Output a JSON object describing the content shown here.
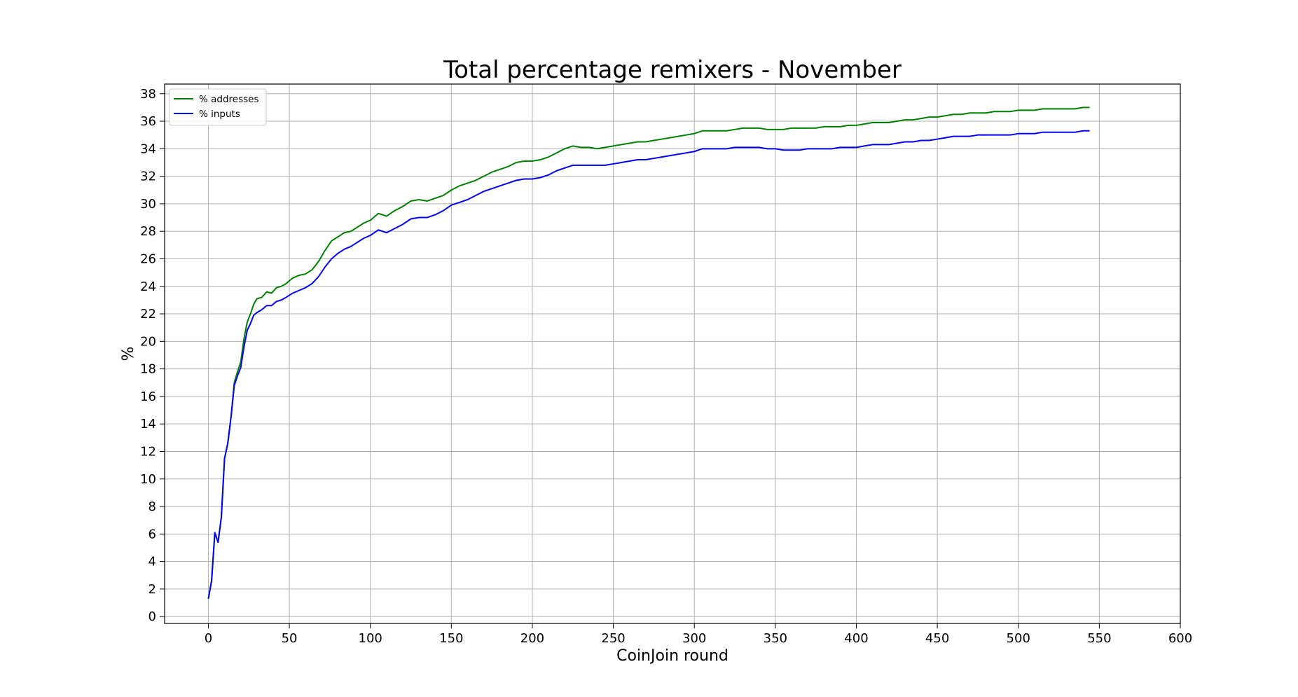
{
  "chart_data": {
    "type": "line",
    "title": "Total percentage remixers - November",
    "xlabel": "CoinJoin round",
    "ylabel": "%",
    "xlim": [
      -27,
      600
    ],
    "ylim": [
      -0.5,
      38.7
    ],
    "xticks": [
      0,
      50,
      100,
      150,
      200,
      250,
      300,
      350,
      400,
      450,
      500,
      550,
      600
    ],
    "yticks": [
      0,
      2,
      4,
      6,
      8,
      10,
      12,
      14,
      16,
      18,
      20,
      22,
      24,
      26,
      28,
      30,
      32,
      34,
      36,
      38
    ],
    "grid": true,
    "legend_position": "top-left",
    "series": [
      {
        "name": "% addresses",
        "color": "#008000",
        "points": [
          [
            0,
            1.3
          ],
          [
            2,
            2.6
          ],
          [
            4,
            6.1
          ],
          [
            6,
            5.4
          ],
          [
            8,
            7.2
          ],
          [
            10,
            11.5
          ],
          [
            12,
            12.6
          ],
          [
            14,
            14.5
          ],
          [
            16,
            17.0
          ],
          [
            18,
            17.8
          ],
          [
            20,
            18.5
          ],
          [
            22,
            20.2
          ],
          [
            24,
            21.4
          ],
          [
            26,
            22.0
          ],
          [
            28,
            22.7
          ],
          [
            30,
            23.1
          ],
          [
            33,
            23.2
          ],
          [
            36,
            23.6
          ],
          [
            39,
            23.5
          ],
          [
            42,
            23.9
          ],
          [
            45,
            24.0
          ],
          [
            48,
            24.2
          ],
          [
            52,
            24.6
          ],
          [
            56,
            24.8
          ],
          [
            60,
            24.9
          ],
          [
            64,
            25.2
          ],
          [
            68,
            25.8
          ],
          [
            72,
            26.6
          ],
          [
            76,
            27.3
          ],
          [
            80,
            27.6
          ],
          [
            84,
            27.9
          ],
          [
            88,
            28.0
          ],
          [
            92,
            28.3
          ],
          [
            96,
            28.6
          ],
          [
            100,
            28.8
          ],
          [
            105,
            29.3
          ],
          [
            110,
            29.1
          ],
          [
            115,
            29.5
          ],
          [
            120,
            29.8
          ],
          [
            125,
            30.2
          ],
          [
            130,
            30.3
          ],
          [
            135,
            30.2
          ],
          [
            140,
            30.4
          ],
          [
            145,
            30.6
          ],
          [
            150,
            31.0
          ],
          [
            155,
            31.3
          ],
          [
            160,
            31.5
          ],
          [
            165,
            31.7
          ],
          [
            170,
            32.0
          ],
          [
            175,
            32.3
          ],
          [
            180,
            32.5
          ],
          [
            185,
            32.7
          ],
          [
            190,
            33.0
          ],
          [
            195,
            33.1
          ],
          [
            200,
            33.1
          ],
          [
            205,
            33.2
          ],
          [
            210,
            33.4
          ],
          [
            215,
            33.7
          ],
          [
            220,
            34.0
          ],
          [
            225,
            34.2
          ],
          [
            230,
            34.1
          ],
          [
            235,
            34.1
          ],
          [
            240,
            34.0
          ],
          [
            245,
            34.1
          ],
          [
            250,
            34.2
          ],
          [
            255,
            34.3
          ],
          [
            260,
            34.4
          ],
          [
            265,
            34.5
          ],
          [
            270,
            34.5
          ],
          [
            275,
            34.6
          ],
          [
            280,
            34.7
          ],
          [
            285,
            34.8
          ],
          [
            290,
            34.9
          ],
          [
            295,
            35.0
          ],
          [
            300,
            35.1
          ],
          [
            305,
            35.3
          ],
          [
            310,
            35.3
          ],
          [
            315,
            35.3
          ],
          [
            320,
            35.3
          ],
          [
            325,
            35.4
          ],
          [
            330,
            35.5
          ],
          [
            335,
            35.5
          ],
          [
            340,
            35.5
          ],
          [
            345,
            35.4
          ],
          [
            350,
            35.4
          ],
          [
            355,
            35.4
          ],
          [
            360,
            35.5
          ],
          [
            365,
            35.5
          ],
          [
            370,
            35.5
          ],
          [
            375,
            35.5
          ],
          [
            380,
            35.6
          ],
          [
            385,
            35.6
          ],
          [
            390,
            35.6
          ],
          [
            395,
            35.7
          ],
          [
            400,
            35.7
          ],
          [
            405,
            35.8
          ],
          [
            410,
            35.9
          ],
          [
            415,
            35.9
          ],
          [
            420,
            35.9
          ],
          [
            425,
            36.0
          ],
          [
            430,
            36.1
          ],
          [
            435,
            36.1
          ],
          [
            440,
            36.2
          ],
          [
            445,
            36.3
          ],
          [
            450,
            36.3
          ],
          [
            455,
            36.4
          ],
          [
            460,
            36.5
          ],
          [
            465,
            36.5
          ],
          [
            470,
            36.6
          ],
          [
            475,
            36.6
          ],
          [
            480,
            36.6
          ],
          [
            485,
            36.7
          ],
          [
            490,
            36.7
          ],
          [
            495,
            36.7
          ],
          [
            500,
            36.8
          ],
          [
            505,
            36.8
          ],
          [
            510,
            36.8
          ],
          [
            515,
            36.9
          ],
          [
            520,
            36.9
          ],
          [
            525,
            36.9
          ],
          [
            530,
            36.9
          ],
          [
            535,
            36.9
          ],
          [
            540,
            37.0
          ],
          [
            544,
            37.0
          ]
        ]
      },
      {
        "name": "% inputs",
        "color": "#0000ff",
        "points": [
          [
            0,
            1.3
          ],
          [
            2,
            2.6
          ],
          [
            4,
            6.1
          ],
          [
            6,
            5.4
          ],
          [
            8,
            7.2
          ],
          [
            10,
            11.5
          ],
          [
            12,
            12.6
          ],
          [
            14,
            14.5
          ],
          [
            16,
            16.8
          ],
          [
            18,
            17.5
          ],
          [
            20,
            18.1
          ],
          [
            22,
            19.6
          ],
          [
            24,
            20.8
          ],
          [
            26,
            21.3
          ],
          [
            28,
            21.9
          ],
          [
            30,
            22.1
          ],
          [
            33,
            22.3
          ],
          [
            36,
            22.6
          ],
          [
            39,
            22.6
          ],
          [
            42,
            22.9
          ],
          [
            45,
            23.0
          ],
          [
            48,
            23.2
          ],
          [
            52,
            23.5
          ],
          [
            56,
            23.7
          ],
          [
            60,
            23.9
          ],
          [
            64,
            24.2
          ],
          [
            68,
            24.7
          ],
          [
            72,
            25.4
          ],
          [
            76,
            26.0
          ],
          [
            80,
            26.4
          ],
          [
            84,
            26.7
          ],
          [
            88,
            26.9
          ],
          [
            92,
            27.2
          ],
          [
            96,
            27.5
          ],
          [
            100,
            27.7
          ],
          [
            105,
            28.1
          ],
          [
            110,
            27.9
          ],
          [
            115,
            28.2
          ],
          [
            120,
            28.5
          ],
          [
            125,
            28.9
          ],
          [
            130,
            29.0
          ],
          [
            135,
            29.0
          ],
          [
            140,
            29.2
          ],
          [
            145,
            29.5
          ],
          [
            150,
            29.9
          ],
          [
            155,
            30.1
          ],
          [
            160,
            30.3
          ],
          [
            165,
            30.6
          ],
          [
            170,
            30.9
          ],
          [
            175,
            31.1
          ],
          [
            180,
            31.3
          ],
          [
            185,
            31.5
          ],
          [
            190,
            31.7
          ],
          [
            195,
            31.8
          ],
          [
            200,
            31.8
          ],
          [
            205,
            31.9
          ],
          [
            210,
            32.1
          ],
          [
            215,
            32.4
          ],
          [
            220,
            32.6
          ],
          [
            225,
            32.8
          ],
          [
            230,
            32.8
          ],
          [
            235,
            32.8
          ],
          [
            240,
            32.8
          ],
          [
            245,
            32.8
          ],
          [
            250,
            32.9
          ],
          [
            255,
            33.0
          ],
          [
            260,
            33.1
          ],
          [
            265,
            33.2
          ],
          [
            270,
            33.2
          ],
          [
            275,
            33.3
          ],
          [
            280,
            33.4
          ],
          [
            285,
            33.5
          ],
          [
            290,
            33.6
          ],
          [
            295,
            33.7
          ],
          [
            300,
            33.8
          ],
          [
            305,
            34.0
          ],
          [
            310,
            34.0
          ],
          [
            315,
            34.0
          ],
          [
            320,
            34.0
          ],
          [
            325,
            34.1
          ],
          [
            330,
            34.1
          ],
          [
            335,
            34.1
          ],
          [
            340,
            34.1
          ],
          [
            345,
            34.0
          ],
          [
            350,
            34.0
          ],
          [
            355,
            33.9
          ],
          [
            360,
            33.9
          ],
          [
            365,
            33.9
          ],
          [
            370,
            34.0
          ],
          [
            375,
            34.0
          ],
          [
            380,
            34.0
          ],
          [
            385,
            34.0
          ],
          [
            390,
            34.1
          ],
          [
            395,
            34.1
          ],
          [
            400,
            34.1
          ],
          [
            405,
            34.2
          ],
          [
            410,
            34.3
          ],
          [
            415,
            34.3
          ],
          [
            420,
            34.3
          ],
          [
            425,
            34.4
          ],
          [
            430,
            34.5
          ],
          [
            435,
            34.5
          ],
          [
            440,
            34.6
          ],
          [
            445,
            34.6
          ],
          [
            450,
            34.7
          ],
          [
            455,
            34.8
          ],
          [
            460,
            34.9
          ],
          [
            465,
            34.9
          ],
          [
            470,
            34.9
          ],
          [
            475,
            35.0
          ],
          [
            480,
            35.0
          ],
          [
            485,
            35.0
          ],
          [
            490,
            35.0
          ],
          [
            495,
            35.0
          ],
          [
            500,
            35.1
          ],
          [
            505,
            35.1
          ],
          [
            510,
            35.1
          ],
          [
            515,
            35.2
          ],
          [
            520,
            35.2
          ],
          [
            525,
            35.2
          ],
          [
            530,
            35.2
          ],
          [
            535,
            35.2
          ],
          [
            540,
            35.3
          ],
          [
            544,
            35.3
          ]
        ]
      }
    ]
  }
}
